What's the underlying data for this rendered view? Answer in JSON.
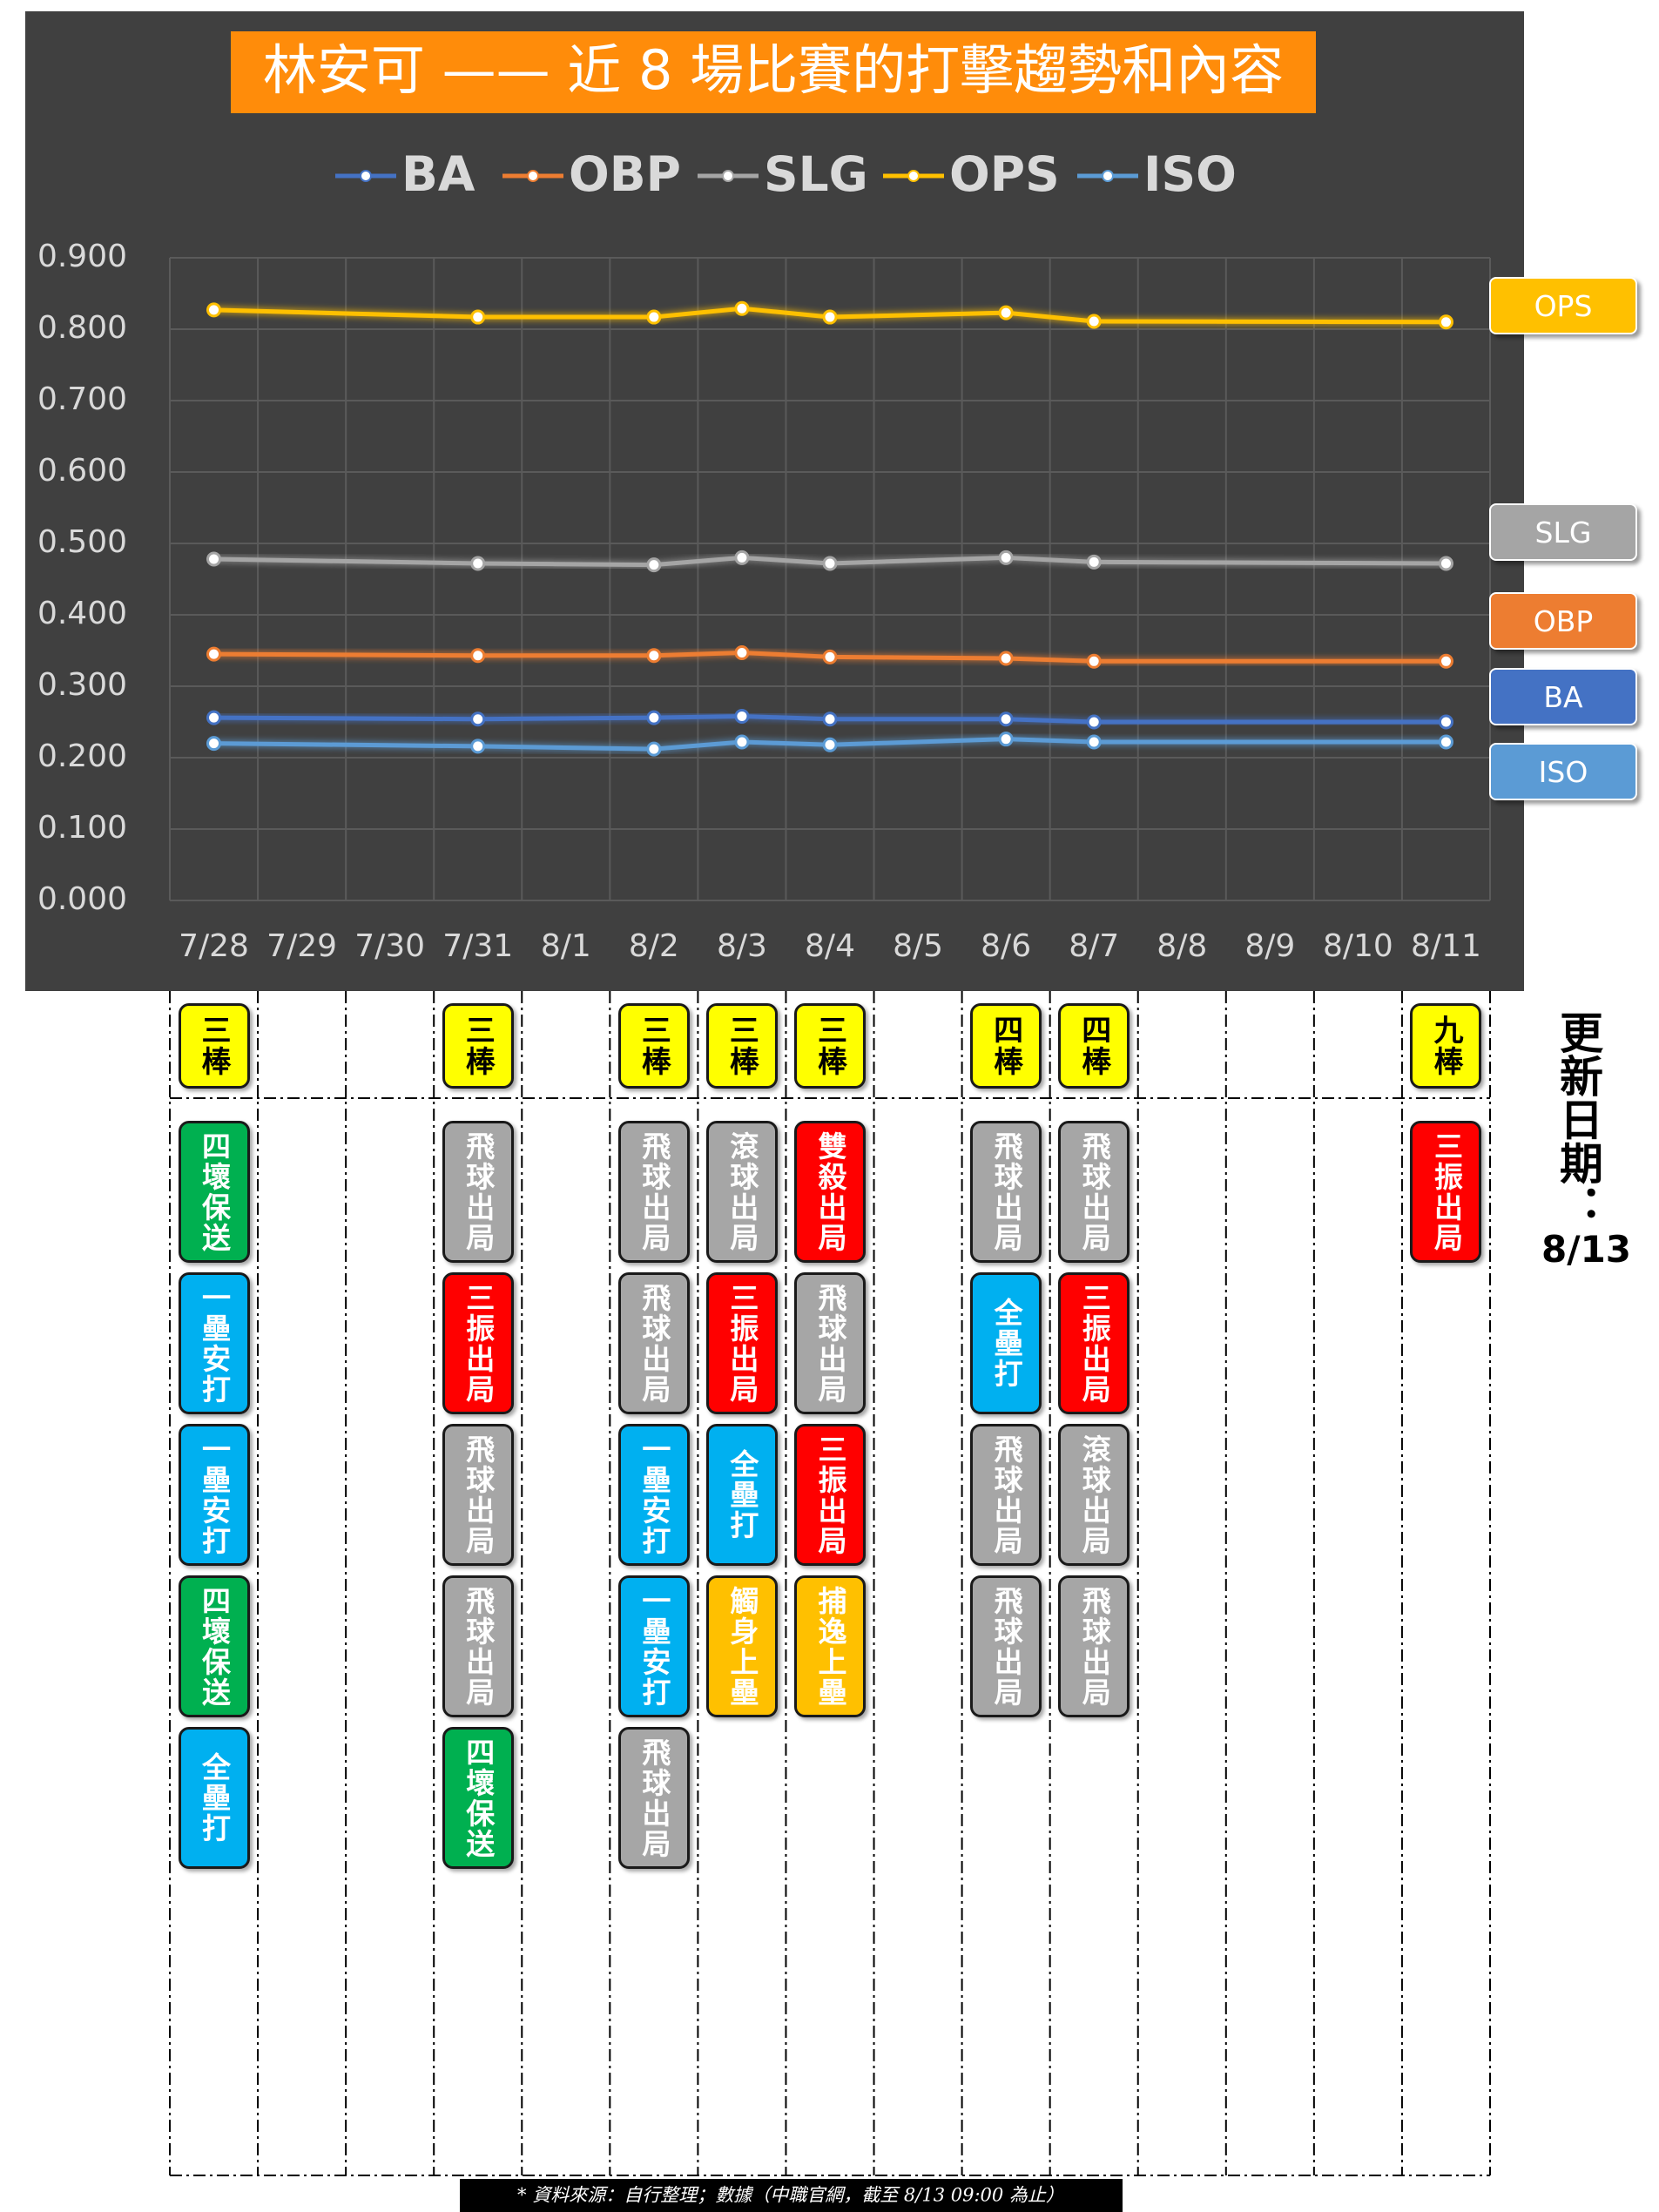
{
  "chart_data": {
    "type": "line",
    "title": "林安可 —— 近 8 場比賽的打擊趨勢和內容",
    "categories": [
      "7/28",
      "7/29",
      "7/30",
      "7/31",
      "8/1",
      "8/2",
      "8/3",
      "8/4",
      "8/5",
      "8/6",
      "8/7",
      "8/8",
      "8/9",
      "8/10",
      "8/11"
    ],
    "series": [
      {
        "name": "BA",
        "color": "#4472c4",
        "values": [
          0.256,
          null,
          null,
          0.254,
          null,
          0.256,
          0.258,
          0.254,
          null,
          0.254,
          0.25,
          null,
          null,
          null,
          0.25
        ]
      },
      {
        "name": "OBP",
        "color": "#ed7d31",
        "values": [
          0.345,
          null,
          null,
          0.343,
          null,
          0.343,
          0.347,
          0.341,
          null,
          0.339,
          0.335,
          null,
          null,
          null,
          0.335
        ]
      },
      {
        "name": "SLG",
        "color": "#a5a5a5",
        "values": [
          0.478,
          null,
          null,
          0.472,
          null,
          0.47,
          0.48,
          0.472,
          null,
          0.48,
          0.474,
          null,
          null,
          null,
          0.472
        ]
      },
      {
        "name": "OPS",
        "color": "#ffc000",
        "values": [
          0.827,
          null,
          null,
          0.817,
          null,
          0.817,
          0.829,
          0.817,
          null,
          0.823,
          0.811,
          null,
          null,
          null,
          0.81
        ]
      },
      {
        "name": "ISO",
        "color": "#5b9bd5",
        "values": [
          0.22,
          null,
          null,
          0.216,
          null,
          0.212,
          0.222,
          0.218,
          null,
          0.226,
          0.222,
          null,
          null,
          null,
          0.222
        ]
      }
    ],
    "ylim": [
      0,
      0.9
    ],
    "yticks": [
      {
        "value": 0,
        "label": "0.000"
      },
      {
        "value": 0.1,
        "label": "0.100"
      },
      {
        "value": 0.2,
        "label": "0.200"
      },
      {
        "value": 0.3,
        "label": "0.300"
      },
      {
        "value": 0.4,
        "label": "0.400"
      },
      {
        "value": 0.5,
        "label": "0.500"
      },
      {
        "value": 0.6,
        "label": "0.600"
      },
      {
        "value": 0.7,
        "label": "0.700"
      },
      {
        "value": 0.8,
        "label": "0.800"
      },
      {
        "value": 0.9,
        "label": "0.900"
      }
    ],
    "grid": true,
    "connect_gaps": true,
    "end_labels": [
      "OPS",
      "SLG",
      "OBP",
      "BA",
      "ISO"
    ]
  },
  "batting_order": [
    "三棒",
    null,
    null,
    "三棒",
    null,
    "三棒",
    "三棒",
    "三棒",
    null,
    "四棒",
    "四棒",
    null,
    null,
    null,
    "九棒"
  ],
  "batting_order_color": "#ffff00",
  "results": [
    [
      {
        "text": "四壞保送",
        "color": "#00b050"
      },
      {
        "text": "一壘安打",
        "color": "#00b0f0"
      },
      {
        "text": "一壘安打",
        "color": "#00b0f0"
      },
      {
        "text": "四壞保送",
        "color": "#00b050"
      },
      {
        "text": "全壘打",
        "color": "#00b0f0"
      }
    ],
    [],
    [],
    [
      {
        "text": "飛球出局",
        "color": "#a6a6a6"
      },
      {
        "text": "三振出局",
        "color": "#ff0000"
      },
      {
        "text": "飛球出局",
        "color": "#a6a6a6"
      },
      {
        "text": "飛球出局",
        "color": "#a6a6a6"
      },
      {
        "text": "四壞保送",
        "color": "#00b050"
      }
    ],
    [],
    [
      {
        "text": "飛球出局",
        "color": "#a6a6a6"
      },
      {
        "text": "飛球出局",
        "color": "#a6a6a6"
      },
      {
        "text": "一壘安打",
        "color": "#00b0f0"
      },
      {
        "text": "一壘安打",
        "color": "#00b0f0"
      },
      {
        "text": "飛球出局",
        "color": "#a6a6a6"
      }
    ],
    [
      {
        "text": "滾球出局",
        "color": "#a6a6a6"
      },
      {
        "text": "三振出局",
        "color": "#ff0000"
      },
      {
        "text": "全壘打",
        "color": "#00b0f0"
      },
      {
        "text": "觸身上壘",
        "color": "#ffc000"
      }
    ],
    [
      {
        "text": "雙殺出局",
        "color": "#ff0000"
      },
      {
        "text": "飛球出局",
        "color": "#a6a6a6"
      },
      {
        "text": "三振出局",
        "color": "#ff0000"
      },
      {
        "text": "捕逸上壘",
        "color": "#ffc000"
      }
    ],
    [],
    [
      {
        "text": "飛球出局",
        "color": "#a6a6a6"
      },
      {
        "text": "全壘打",
        "color": "#00b0f0"
      },
      {
        "text": "飛球出局",
        "color": "#a6a6a6"
      },
      {
        "text": "飛球出局",
        "color": "#a6a6a6"
      }
    ],
    [
      {
        "text": "飛球出局",
        "color": "#a6a6a6"
      },
      {
        "text": "三振出局",
        "color": "#ff0000"
      },
      {
        "text": "滾球出局",
        "color": "#a6a6a6"
      },
      {
        "text": "飛球出局",
        "color": "#a6a6a6"
      }
    ],
    [],
    [],
    [],
    [
      {
        "text": "三振出局",
        "color": "#ff0000"
      }
    ]
  ],
  "update": {
    "label": "更新日期：",
    "date": "8/13"
  },
  "footnote": "* 資料來源：自行整理；數據（中職官網，截至 8/13 09:00 為止）"
}
